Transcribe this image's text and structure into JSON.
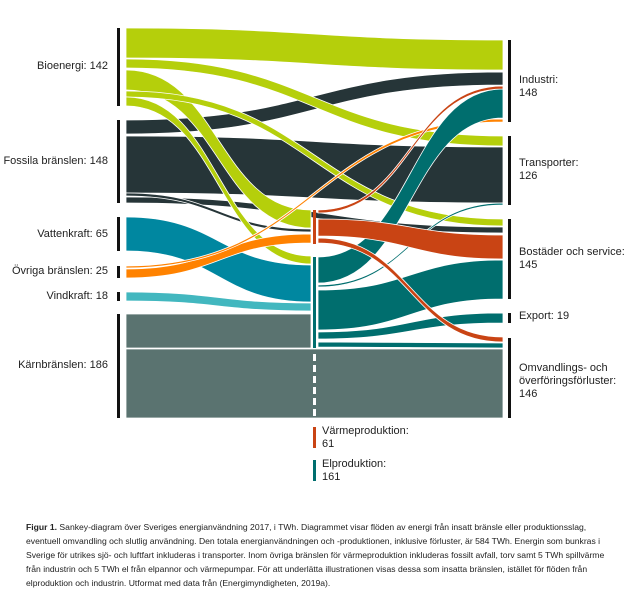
{
  "sources": [
    {
      "name": "Bioenergi",
      "value": 142,
      "label": "Bioenergi: 142"
    },
    {
      "name": "Fossila bränslen",
      "value": 148,
      "label": "Fossila bränslen: 148"
    },
    {
      "name": "Vattenkraft",
      "value": 65,
      "label": "Vattenkraft: 65"
    },
    {
      "name": "Övriga bränslen",
      "value": 25,
      "label": "Övriga bränslen: 25"
    },
    {
      "name": "Vindkraft",
      "value": 18,
      "label": "Vindkraft: 18"
    },
    {
      "name": "Kärnbränslen",
      "value": 186,
      "label": "Kärnbränslen: 186"
    }
  ],
  "intermediate": [
    {
      "name": "Värmeproduktion:",
      "value": "61"
    },
    {
      "name": "Elproduktion:",
      "value": "161"
    }
  ],
  "targets": [
    {
      "name": "Industri:",
      "value": "148"
    },
    {
      "name": "Transporter:",
      "value": "126"
    },
    {
      "name": "Bostäder och service:",
      "value": "145"
    },
    {
      "name": "Export: 19"
    },
    {
      "name": "Omvandlings- och",
      "name2": "överföringsförluster:",
      "value": "146"
    }
  ],
  "colors": {
    "bioenergi": "#b5cf0b",
    "fossila": "#263538",
    "vattenkraft": "#0087a0",
    "ovriga": "#ff8200",
    "vindkraft": "#42b7bf",
    "karn": "#5a7370",
    "el": "#006e6e",
    "varme": "#c94414"
  },
  "caption": {
    "label": "Figur 1.",
    "text": " Sankey-diagram över Sveriges energianvändning 2017, i TWh. Diagrammet visar flöden av energi från insatt bränsle eller produktionsslag, eventuell omvandling och slutlig användning. Den totala energianvändningen och -produktionen, inklusive förluster, är 584 TWh. Energin som bunkras i Sverige för utrikes sjö- och luftfart inkluderas i transporter. Inom övriga bränslen för värmeproduktion inkluderas fossilt avfall, torv samt 5 TWh spillvärme från industrin och 5 TWh el från elpannor och värmepumpar. För att underlätta illustrationen visas dessa som insatta bränslen, istället för flöden från elproduktion och industrin. Utformat med data från (Energimyndigheten, 2019a)."
  }
}
